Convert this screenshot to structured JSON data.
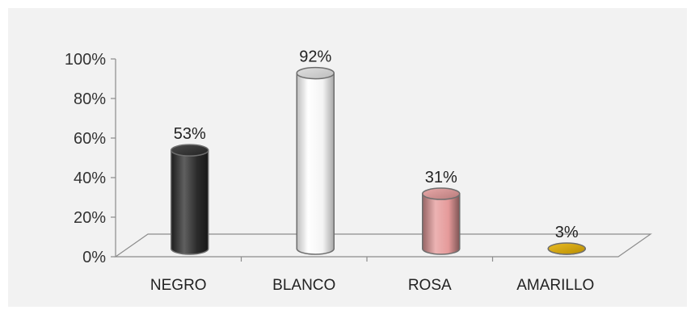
{
  "chart_data": {
    "type": "bar",
    "categories": [
      "NEGRO",
      "BLANCO",
      "ROSA",
      "AMARILLO"
    ],
    "values": [
      53,
      92,
      31,
      3
    ],
    "data_labels": [
      "53%",
      "92%",
      "31%",
      "3%"
    ],
    "y_ticks": [
      "0%",
      "20%",
      "40%",
      "60%",
      "80%",
      "100%"
    ],
    "ylim": [
      0,
      100
    ],
    "unit": "%",
    "grid": false,
    "legend": "none",
    "style": "3d-cylinder",
    "colors": [
      "#2b2b2b",
      "#ffffff",
      "#e59a9a",
      "#e6b000"
    ],
    "background": "#f2f2f2"
  }
}
